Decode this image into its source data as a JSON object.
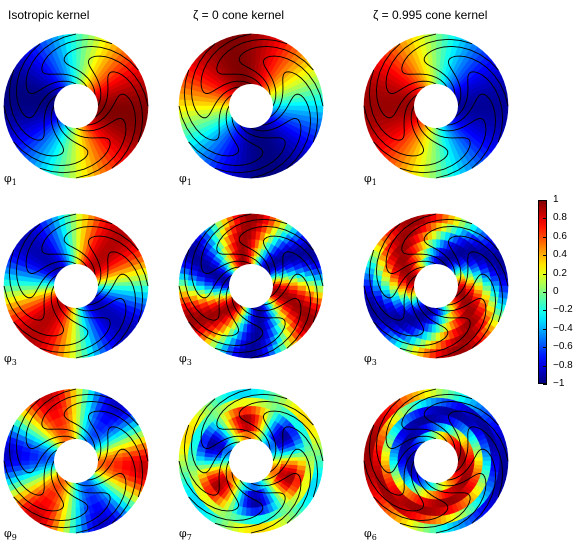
{
  "columns": [
    {
      "title": "Isotropic kernel"
    },
    {
      "title": "ζ = 0 cone kernel"
    },
    {
      "title": "ζ = 0.995 cone kernel"
    }
  ],
  "panels": [
    {
      "symbol": "φ",
      "index": "1",
      "pattern": "dipole-h"
    },
    {
      "symbol": "φ",
      "index": "1",
      "pattern": "dipole-v"
    },
    {
      "symbol": "φ",
      "index": "1",
      "pattern": "dipole-h-inv"
    },
    {
      "symbol": "φ",
      "index": "3",
      "pattern": "quad-a"
    },
    {
      "symbol": "φ",
      "index": "3",
      "pattern": "quad-b"
    },
    {
      "symbol": "φ",
      "index": "3",
      "pattern": "quad-c"
    },
    {
      "symbol": "φ",
      "index": "9",
      "pattern": "multi-a"
    },
    {
      "symbol": "φ",
      "index": "7",
      "pattern": "multi-b"
    },
    {
      "symbol": "φ",
      "index": "6",
      "pattern": "swirl"
    }
  ],
  "colorbar": {
    "colormap": "jet",
    "ticks": [
      "1",
      "0.8",
      "0.6",
      "0.4",
      "0.2",
      "0",
      "−0.2",
      "−0.4",
      "−0.6",
      "−0.8",
      "−1"
    ]
  }
}
